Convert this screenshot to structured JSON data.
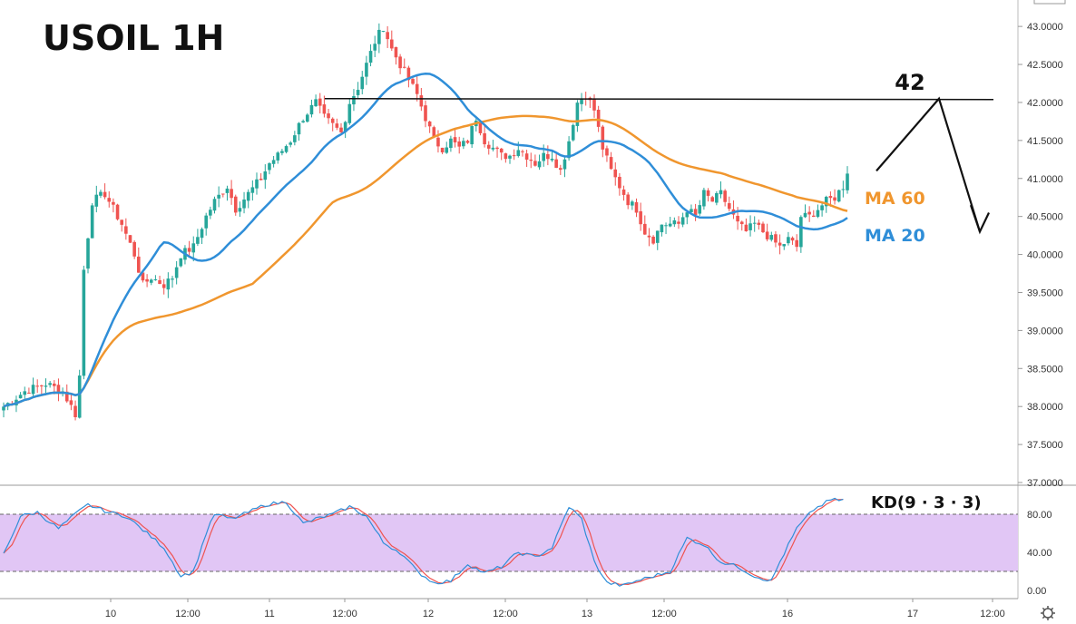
{
  "title": "USOIL 1H",
  "colors": {
    "up": "#26a69a",
    "down": "#ef5350",
    "ma20": "#2f8ed8",
    "ma60": "#f0962e",
    "k": "#2f8ed8",
    "d": "#ef5350",
    "kd_band": "#e1c6f5",
    "axis": "#888888"
  },
  "labels": {
    "ma60": "MA 60",
    "ma20": "MA 20",
    "kd": "KD(9 · 3 · 3)",
    "level": "42",
    "settings_icon": "gear-icon"
  },
  "chart_data": [
    {
      "type": "candlestick",
      "title": "USOIL 1H",
      "ylim": [
        37.0,
        43.3
      ],
      "y_ticks": [
        "37.0000",
        "37.5000",
        "38.0000",
        "38.5000",
        "39.0000",
        "39.5000",
        "40.0000",
        "40.5000",
        "41.0000",
        "41.5000",
        "42.0000",
        "42.5000",
        "43.0000"
      ],
      "x_ticks": [
        "10",
        "12:00",
        "11",
        "12:00",
        "12",
        "12:00",
        "13",
        "12:00",
        "16",
        "17",
        "12:00"
      ],
      "horizontal_line": 42.05,
      "projection": [
        [
          41.1
        ],
        [
          42.05
        ],
        [
          40.3
        ]
      ],
      "anchors": [
        [
          0,
          38.0
        ],
        [
          5,
          38.2
        ],
        [
          10,
          38.3
        ],
        [
          14,
          38.2
        ],
        [
          17,
          37.9
        ],
        [
          18,
          38.4
        ],
        [
          19,
          39.8
        ],
        [
          21,
          40.7
        ],
        [
          24,
          40.8
        ],
        [
          26,
          40.6
        ],
        [
          28,
          40.4
        ],
        [
          31,
          40.0
        ],
        [
          33,
          39.6
        ],
        [
          35,
          39.7
        ],
        [
          38,
          39.6
        ],
        [
          40,
          39.7
        ],
        [
          42,
          40.0
        ],
        [
          45,
          40.1
        ],
        [
          48,
          40.5
        ],
        [
          50,
          40.7
        ],
        [
          53,
          40.9
        ],
        [
          55,
          40.6
        ],
        [
          58,
          40.8
        ],
        [
          61,
          41.0
        ],
        [
          63,
          41.2
        ],
        [
          65,
          41.3
        ],
        [
          68,
          41.5
        ],
        [
          71,
          41.8
        ],
        [
          74,
          42.0
        ],
        [
          76,
          41.8
        ],
        [
          78,
          41.7
        ],
        [
          80,
          41.6
        ],
        [
          82,
          42.0
        ],
        [
          84,
          42.2
        ],
        [
          86,
          42.5
        ],
        [
          88,
          42.8
        ],
        [
          90,
          43.0
        ],
        [
          92,
          42.7
        ],
        [
          94,
          42.5
        ],
        [
          96,
          42.3
        ],
        [
          98,
          42.1
        ],
        [
          100,
          41.8
        ],
        [
          102,
          41.5
        ],
        [
          104,
          41.4
        ],
        [
          106,
          41.5
        ],
        [
          108,
          41.4
        ],
        [
          110,
          41.5
        ],
        [
          112,
          41.8
        ],
        [
          114,
          41.5
        ],
        [
          116,
          41.4
        ],
        [
          118,
          41.3
        ],
        [
          120,
          41.3
        ],
        [
          122,
          41.4
        ],
        [
          124,
          41.3
        ],
        [
          126,
          41.2
        ],
        [
          128,
          41.3
        ],
        [
          130,
          41.3
        ],
        [
          132,
          41.1
        ],
        [
          134,
          41.5
        ],
        [
          136,
          42.0
        ],
        [
          138,
          42.1
        ],
        [
          140,
          41.9
        ],
        [
          142,
          41.4
        ],
        [
          144,
          41.1
        ],
        [
          146,
          40.9
        ],
        [
          148,
          40.7
        ],
        [
          150,
          40.6
        ],
        [
          152,
          40.3
        ],
        [
          154,
          40.2
        ],
        [
          156,
          40.4
        ],
        [
          158,
          40.4
        ],
        [
          160,
          40.4
        ],
        [
          162,
          40.6
        ],
        [
          164,
          40.5
        ],
        [
          166,
          40.8
        ],
        [
          168,
          40.7
        ],
        [
          170,
          40.8
        ],
        [
          172,
          40.6
        ],
        [
          174,
          40.4
        ],
        [
          176,
          40.3
        ],
        [
          178,
          40.4
        ],
        [
          180,
          40.3
        ],
        [
          182,
          40.2
        ],
        [
          184,
          40.1
        ],
        [
          186,
          40.2
        ],
        [
          188,
          40.1
        ],
        [
          189,
          40.5
        ],
        [
          191,
          40.5
        ],
        [
          193,
          40.6
        ],
        [
          195,
          40.7
        ],
        [
          197,
          40.75
        ],
        [
          199,
          40.9
        ],
        [
          200,
          41.1
        ]
      ]
    },
    {
      "type": "line",
      "title": "KD(9 · 3 · 3)",
      "ylim": [
        -5,
        100
      ],
      "y_ticks": [
        "0.00",
        "40.00",
        "80.00"
      ],
      "band": [
        20,
        80
      ],
      "series": [
        {
          "key": "K",
          "color": "#2f8ed8"
        },
        {
          "key": "D",
          "color": "#ef5350"
        }
      ],
      "k_anchors": [
        [
          0,
          38
        ],
        [
          4,
          78
        ],
        [
          8,
          82
        ],
        [
          13,
          65
        ],
        [
          17,
          80
        ],
        [
          20,
          90
        ],
        [
          25,
          82
        ],
        [
          29,
          78
        ],
        [
          34,
          60
        ],
        [
          38,
          45
        ],
        [
          42,
          15
        ],
        [
          45,
          20
        ],
        [
          48,
          60
        ],
        [
          50,
          80
        ],
        [
          54,
          75
        ],
        [
          58,
          82
        ],
        [
          62,
          90
        ],
        [
          67,
          93
        ],
        [
          71,
          70
        ],
        [
          74,
          75
        ],
        [
          78,
          80
        ],
        [
          82,
          88
        ],
        [
          86,
          78
        ],
        [
          90,
          50
        ],
        [
          94,
          40
        ],
        [
          98,
          20
        ],
        [
          102,
          8
        ],
        [
          106,
          10
        ],
        [
          110,
          28
        ],
        [
          114,
          18
        ],
        [
          118,
          25
        ],
        [
          122,
          40
        ],
        [
          126,
          35
        ],
        [
          130,
          45
        ],
        [
          134,
          88
        ],
        [
          137,
          75
        ],
        [
          140,
          30
        ],
        [
          143,
          8
        ],
        [
          147,
          5
        ],
        [
          150,
          10
        ],
        [
          154,
          15
        ],
        [
          158,
          20
        ],
        [
          162,
          55
        ],
        [
          166,
          48
        ],
        [
          170,
          30
        ],
        [
          174,
          25
        ],
        [
          178,
          15
        ],
        [
          182,
          10
        ],
        [
          184,
          30
        ],
        [
          188,
          65
        ],
        [
          192,
          85
        ],
        [
          196,
          95
        ],
        [
          200,
          95
        ]
      ]
    }
  ]
}
